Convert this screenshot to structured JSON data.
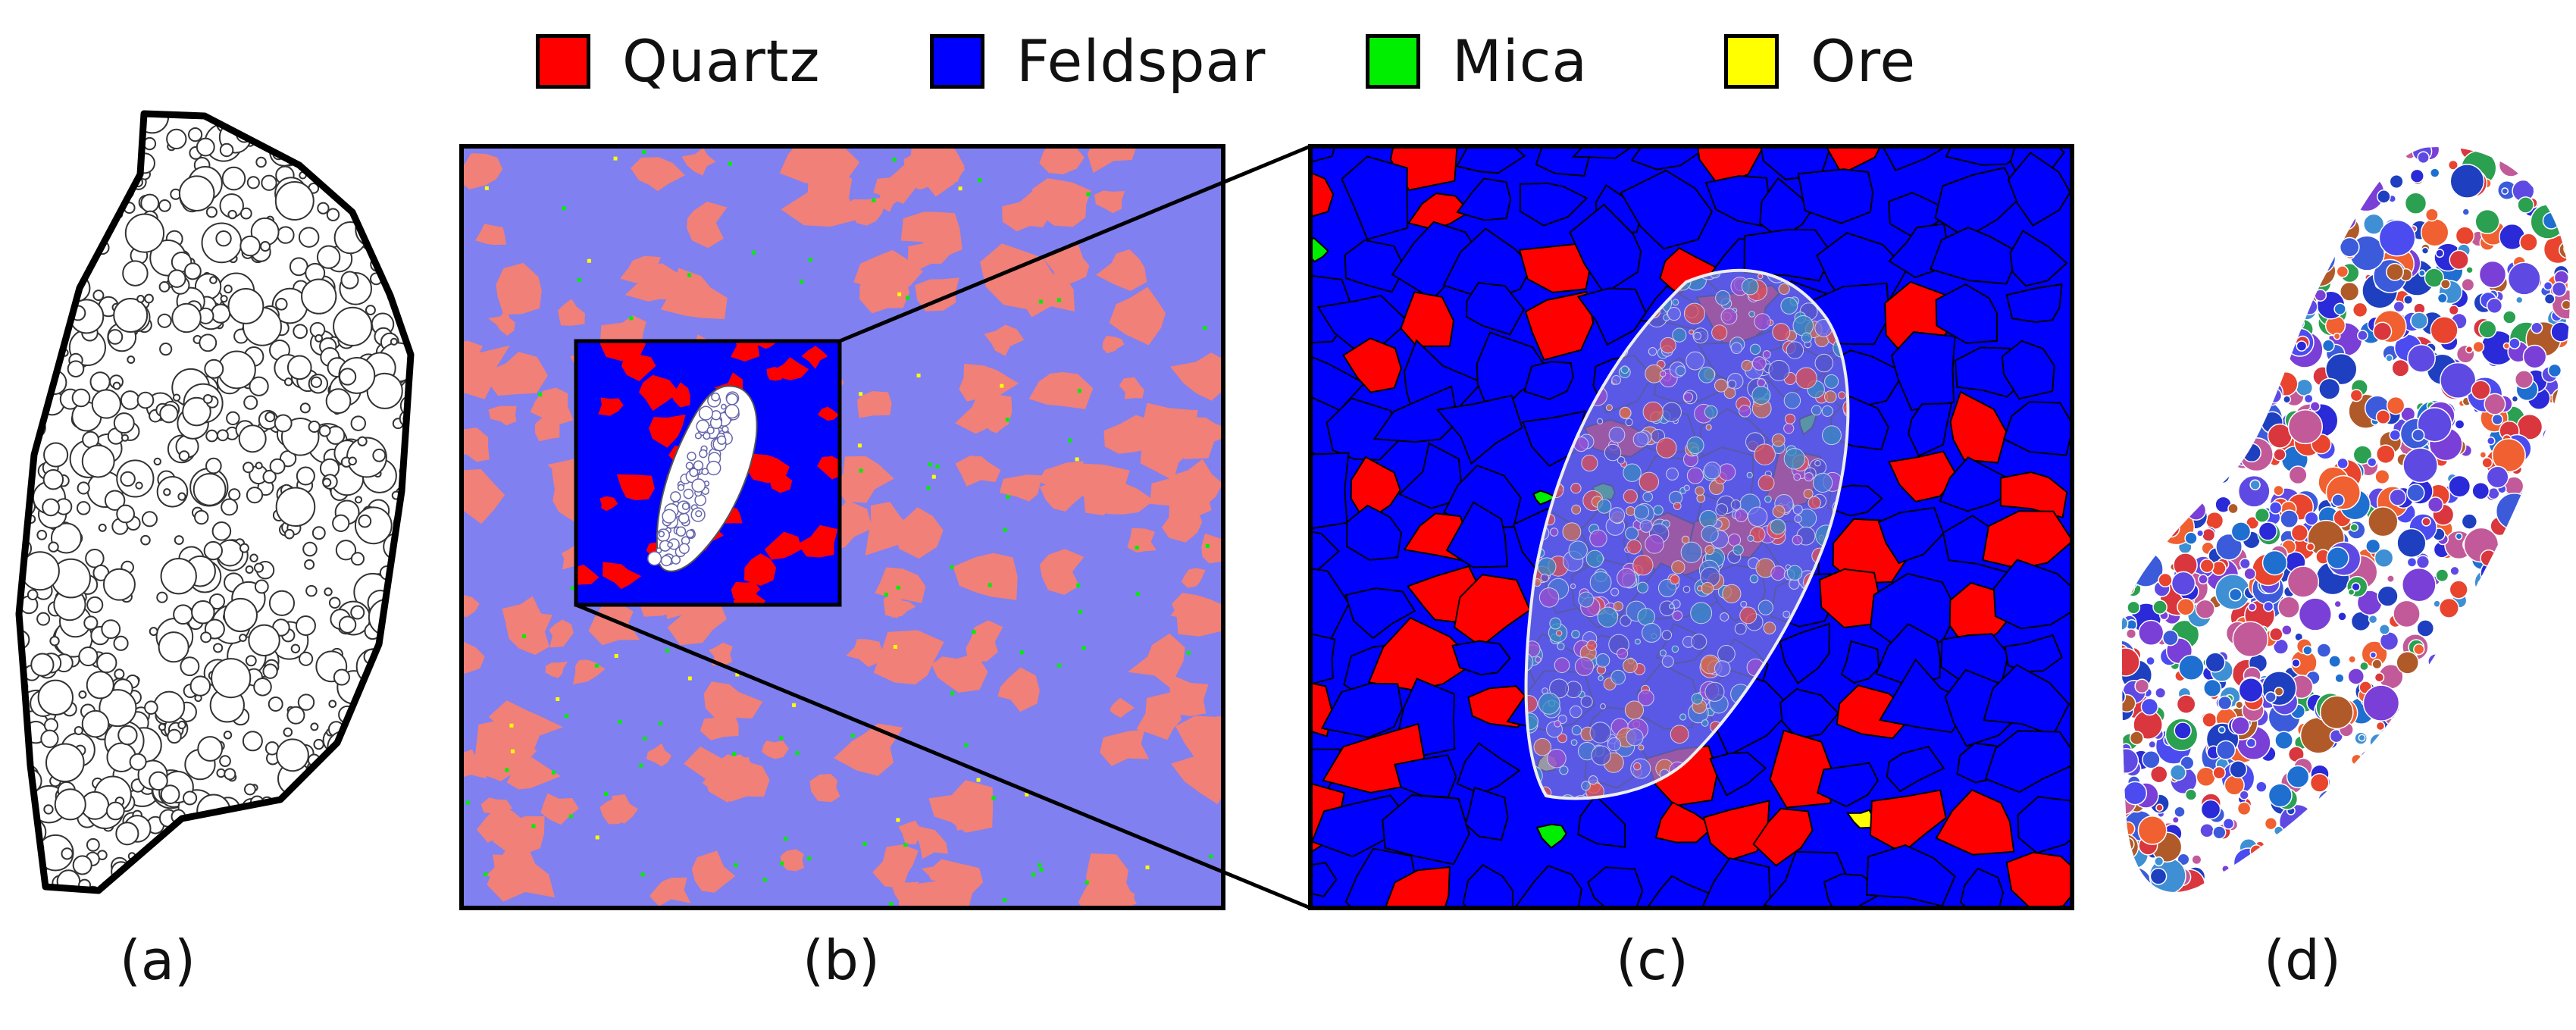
{
  "legend": {
    "items": [
      {
        "label": "Quartz",
        "color": "#ff0000"
      },
      {
        "label": "Feldspar",
        "color": "#0000ff"
      },
      {
        "label": "Mica",
        "color": "#00ee00"
      },
      {
        "label": "Ore",
        "color": "#ffff00"
      }
    ]
  },
  "panels": [
    {
      "id": "a",
      "caption": "(a)"
    },
    {
      "id": "b",
      "caption": "(b)"
    },
    {
      "id": "c",
      "caption": "(c)"
    },
    {
      "id": "d",
      "caption": "(d)"
    }
  ],
  "colors": {
    "quartz": "#ff0000",
    "feldspar": "#0000ff",
    "mica": "#00ee00",
    "ore": "#ffff00",
    "quartz_faded": "#f08078",
    "feldspar_faded": "#8080f0",
    "outline": "#000000"
  }
}
